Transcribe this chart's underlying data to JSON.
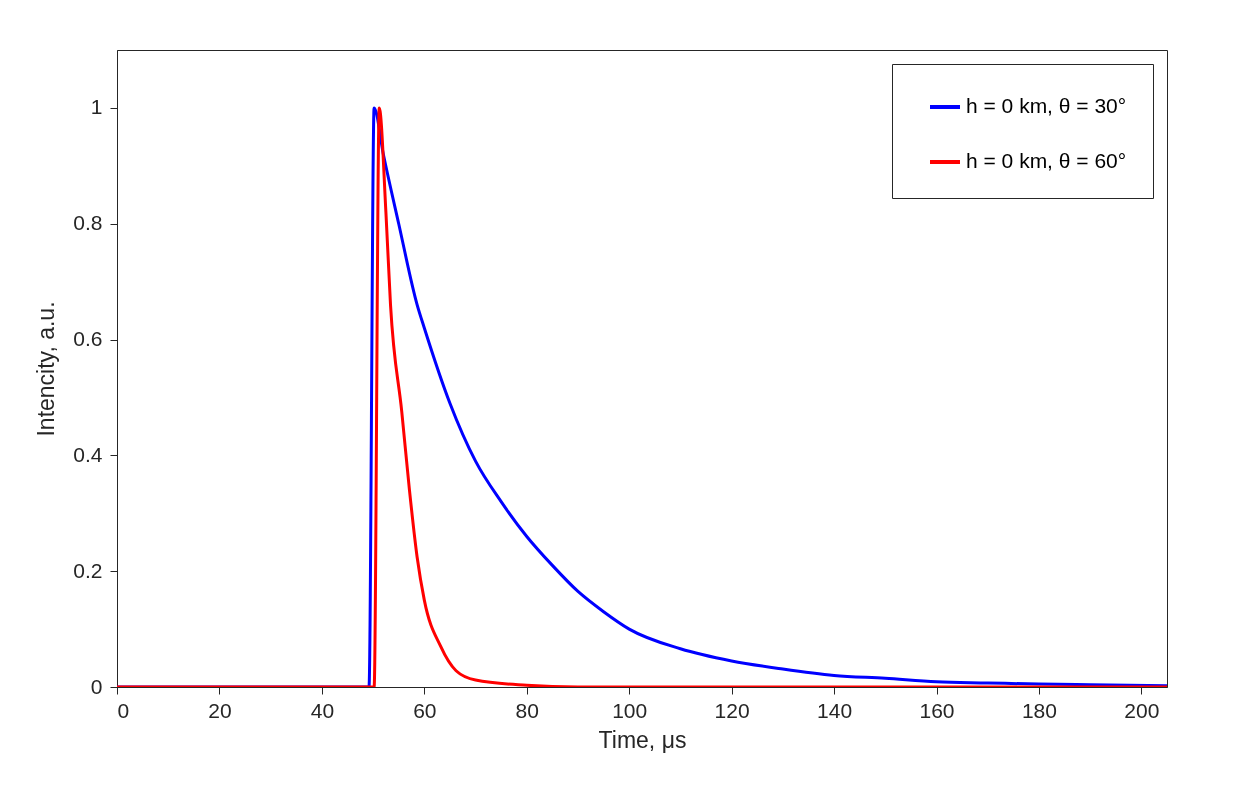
{
  "chart_data": {
    "type": "line",
    "xlabel": "Time, μs",
    "ylabel": "Intencity, a.u.",
    "xlim": [
      0,
      205
    ],
    "ylim": [
      0,
      1.1
    ],
    "xticks": [
      0,
      20,
      40,
      60,
      80,
      100,
      120,
      140,
      160,
      180,
      200
    ],
    "yticks": [
      0,
      0.2,
      0.4,
      0.6,
      0.8,
      1
    ],
    "grid": false,
    "legend": "top right",
    "line_style": "solid",
    "marker": "none",
    "series": [
      {
        "name": "h = 0 km, θ = 30°",
        "color": "#0000ff",
        "x": [
          0,
          49.2,
          50.2,
          52,
          55,
          58.6,
          60,
          65,
          70,
          75,
          80,
          85,
          90,
          95,
          100,
          110,
          120,
          130,
          140,
          150,
          160,
          170,
          180,
          190,
          205
        ],
        "values": [
          0,
          0,
          1,
          0.92,
          0.8,
          0.66,
          0.62,
          0.49,
          0.39,
          0.32,
          0.26,
          0.21,
          0.165,
          0.13,
          0.1,
          0.066,
          0.045,
          0.031,
          0.02,
          0.015,
          0.009,
          0.007,
          0.005,
          0.004,
          0.002
        ]
      },
      {
        "name": "h = 0 km, θ = 60°",
        "color": "#ff0000",
        "x": [
          0,
          50.2,
          51.2,
          52.5,
          53.4,
          55.6,
          57.1,
          58.6,
          60,
          63.2,
          66.2,
          70,
          80,
          90,
          205
        ],
        "values": [
          0,
          0,
          1,
          0.82,
          0.66,
          0.475,
          0.34,
          0.224,
          0.15,
          0.07,
          0.028,
          0.012,
          0.003,
          0,
          0
        ]
      }
    ]
  }
}
